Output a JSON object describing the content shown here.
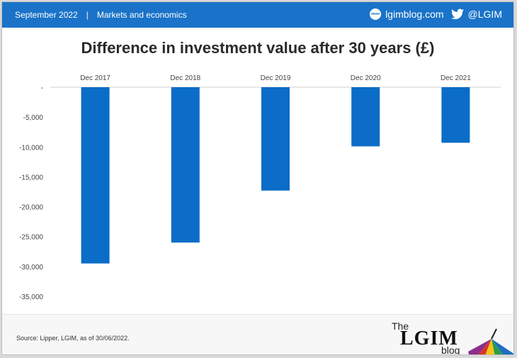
{
  "header": {
    "date": "September 2022",
    "separator": "|",
    "section": "Markets and economics",
    "site_badge": "www",
    "site": "lgimblog.com",
    "twitter": "@LGIM"
  },
  "footer": {
    "source": "Source: Lipper, LGIM,  as of 30/06/2022.",
    "logo_the": "The",
    "logo_name": "LGIM",
    "logo_blog": "blog"
  },
  "colors": {
    "header_bg": "#1a73c8",
    "bar": "#0b6dc7"
  },
  "chart_data": {
    "type": "bar",
    "title": "Difference in investment value after 30 years (£)",
    "categories": [
      "Dec 2017",
      "Dec 2018",
      "Dec 2019",
      "Dec 2020",
      "Dec 2021"
    ],
    "values": [
      -29500,
      -26000,
      -17300,
      -9900,
      -9300
    ],
    "ylim": [
      -35000,
      0
    ],
    "yticks": [
      0,
      -5000,
      -10000,
      -15000,
      -20000,
      -25000,
      -30000,
      -35000
    ],
    "ytick_labels": [
      "-",
      "-5,000",
      "-10,000",
      "-15,000",
      "-20,000",
      "-25,000",
      "-30,000",
      "-35,000"
    ],
    "x_axis_position": "top",
    "grid": false,
    "legend": "none"
  }
}
